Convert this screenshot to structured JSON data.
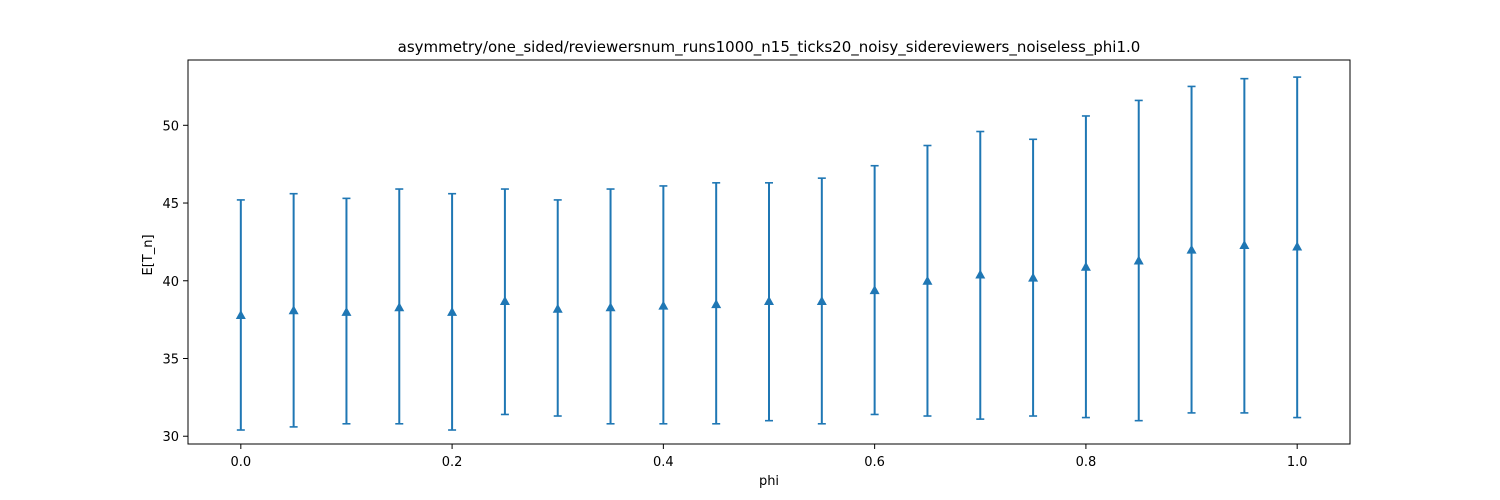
{
  "chart_data": {
    "type": "scatter",
    "title": "asymmetry/one_sided/reviewersnum_runs1000_n15_ticks20_noisy_sidereviewers_noiseless_phi1.0",
    "xlabel": "phi",
    "ylabel": "E[T_n]",
    "xlim": [
      -0.05,
      1.05
    ],
    "ylim": [
      29.5,
      54.2
    ],
    "xticks": [
      0.0,
      0.2,
      0.4,
      0.6,
      0.8,
      1.0
    ],
    "xtick_labels": [
      "0.0",
      "0.2",
      "0.4",
      "0.6",
      "0.8",
      "1.0"
    ],
    "yticks": [
      30,
      35,
      40,
      45,
      50
    ],
    "ytick_labels": [
      "30",
      "35",
      "40",
      "45",
      "50"
    ],
    "grid": false,
    "marker": "triangle-up",
    "color": "#1f77b4",
    "series": [
      {
        "x": [
          0.0,
          0.05,
          0.1,
          0.15,
          0.2,
          0.25,
          0.3,
          0.35,
          0.4,
          0.45,
          0.5,
          0.55,
          0.6,
          0.65,
          0.7,
          0.75,
          0.8,
          0.85,
          0.9,
          0.95,
          1.0
        ],
        "y": [
          37.8,
          38.1,
          38.0,
          38.3,
          38.0,
          38.7,
          38.2,
          38.3,
          38.4,
          38.5,
          38.7,
          38.7,
          39.4,
          40.0,
          40.4,
          40.2,
          40.9,
          41.3,
          42.0,
          42.3,
          42.2
        ],
        "y_lower": [
          30.4,
          30.6,
          30.8,
          30.8,
          30.4,
          31.4,
          31.3,
          30.8,
          30.8,
          30.8,
          31.0,
          30.8,
          31.4,
          31.3,
          31.1,
          31.3,
          31.2,
          31.0,
          31.5,
          31.5,
          31.2
        ],
        "y_upper": [
          45.2,
          45.6,
          45.3,
          45.9,
          45.6,
          45.9,
          45.2,
          45.9,
          46.1,
          46.3,
          46.3,
          46.6,
          47.4,
          48.7,
          49.6,
          49.1,
          50.6,
          51.6,
          52.5,
          53.0,
          53.1
        ]
      }
    ]
  }
}
